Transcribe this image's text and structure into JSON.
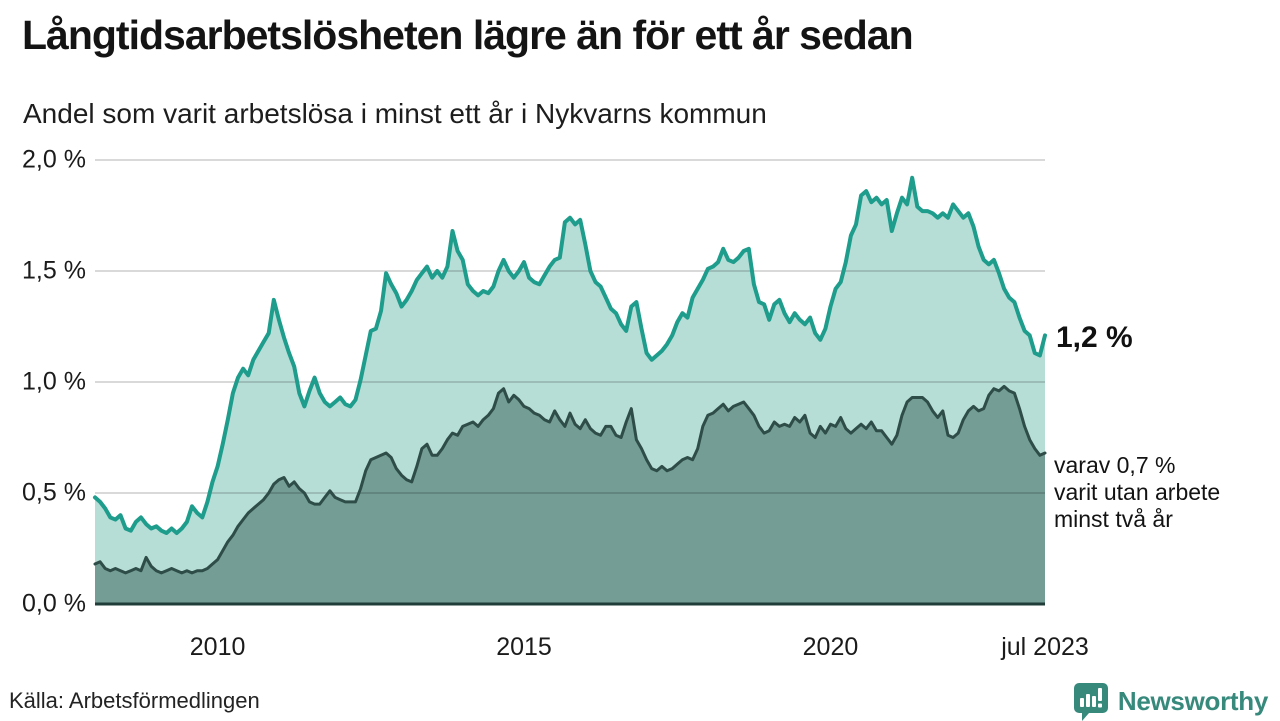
{
  "header": {
    "title": "Långtidsarbetslösheten lägre än för ett år sedan",
    "subtitle": "Andel som varit arbetslösa i minst ett år i Nykvarns kommun"
  },
  "annotations": {
    "latest_total": "1,2 %",
    "latest_sub_line1": "varav 0,7 %",
    "latest_sub_line2": "varit utan arbete",
    "latest_sub_line3": "minst två år"
  },
  "footer": {
    "source": "Källa: Arbetsförmedlingen",
    "brand": "Newsworthy"
  },
  "colors": {
    "line_total": "#1e9c8c",
    "fill_total": "#b7ddd7",
    "line_sub": "#2e4d49",
    "fill_sub": "#749d96",
    "baseline": "#203d39",
    "grid": "rgba(0,0,0,0.15)",
    "brand_teal": "#37897c"
  },
  "chart_data": {
    "type": "area",
    "title": "Långtidsarbetslösheten lägre än för ett år sedan",
    "subtitle": "Andel som varit arbetslösa i minst ett år i Nykvarns kommun",
    "unit": "%",
    "frequency": "monthly",
    "x_start": "2008-01",
    "x_end": "2023-07",
    "ylim": [
      0,
      2.0
    ],
    "grid": true,
    "y_ticks": [
      {
        "value": 2.0,
        "label": "2,0 %"
      },
      {
        "value": 1.5,
        "label": "1,5 %"
      },
      {
        "value": 1.0,
        "label": "1,0 %"
      },
      {
        "value": 0.5,
        "label": "0,5 %"
      },
      {
        "value": 0.0,
        "label": "0,0 %"
      }
    ],
    "x_ticks": [
      {
        "index": 24,
        "label": "2010"
      },
      {
        "index": 84,
        "label": "2015"
      },
      {
        "index": 144,
        "label": "2020"
      },
      {
        "index": 186,
        "label": "jul 2023"
      }
    ],
    "series": [
      {
        "name": "Arbetslösa minst ett år",
        "last_value_label": "1,2 %",
        "values": [
          0.48,
          0.46,
          0.43,
          0.39,
          0.38,
          0.4,
          0.34,
          0.33,
          0.37,
          0.39,
          0.36,
          0.34,
          0.35,
          0.33,
          0.32,
          0.34,
          0.32,
          0.34,
          0.37,
          0.44,
          0.41,
          0.39,
          0.46,
          0.55,
          0.62,
          0.72,
          0.83,
          0.95,
          1.02,
          1.06,
          1.03,
          1.1,
          1.14,
          1.18,
          1.22,
          1.37,
          1.28,
          1.2,
          1.13,
          1.07,
          0.95,
          0.89,
          0.96,
          1.02,
          0.95,
          0.91,
          0.89,
          0.91,
          0.93,
          0.9,
          0.89,
          0.92,
          1.01,
          1.12,
          1.23,
          1.24,
          1.32,
          1.49,
          1.44,
          1.4,
          1.34,
          1.37,
          1.41,
          1.46,
          1.49,
          1.52,
          1.47,
          1.5,
          1.47,
          1.52,
          1.68,
          1.59,
          1.55,
          1.44,
          1.41,
          1.39,
          1.41,
          1.4,
          1.43,
          1.5,
          1.55,
          1.5,
          1.47,
          1.5,
          1.54,
          1.47,
          1.45,
          1.44,
          1.48,
          1.52,
          1.55,
          1.56,
          1.72,
          1.74,
          1.71,
          1.73,
          1.62,
          1.5,
          1.45,
          1.43,
          1.38,
          1.33,
          1.31,
          1.26,
          1.23,
          1.34,
          1.36,
          1.24,
          1.13,
          1.1,
          1.12,
          1.14,
          1.17,
          1.21,
          1.27,
          1.31,
          1.29,
          1.38,
          1.42,
          1.46,
          1.51,
          1.52,
          1.54,
          1.6,
          1.55,
          1.54,
          1.56,
          1.59,
          1.6,
          1.44,
          1.36,
          1.35,
          1.28,
          1.35,
          1.37,
          1.31,
          1.27,
          1.31,
          1.28,
          1.26,
          1.29,
          1.22,
          1.19,
          1.24,
          1.34,
          1.42,
          1.45,
          1.54,
          1.66,
          1.71,
          1.84,
          1.86,
          1.81,
          1.83,
          1.8,
          1.82,
          1.68,
          1.76,
          1.83,
          1.8,
          1.92,
          1.79,
          1.77,
          1.77,
          1.76,
          1.74,
          1.76,
          1.74,
          1.8,
          1.77,
          1.74,
          1.76,
          1.7,
          1.61,
          1.55,
          1.53,
          1.55,
          1.49,
          1.42,
          1.38,
          1.36,
          1.29,
          1.23,
          1.21,
          1.13,
          1.12,
          1.21
        ]
      },
      {
        "name": "varav utan arbete minst två år",
        "last_value_label": "0,7 %",
        "values": [
          0.18,
          0.19,
          0.16,
          0.15,
          0.16,
          0.15,
          0.14,
          0.15,
          0.16,
          0.15,
          0.21,
          0.17,
          0.15,
          0.14,
          0.15,
          0.16,
          0.15,
          0.14,
          0.15,
          0.14,
          0.15,
          0.15,
          0.16,
          0.18,
          0.2,
          0.24,
          0.28,
          0.31,
          0.35,
          0.38,
          0.41,
          0.43,
          0.45,
          0.47,
          0.5,
          0.54,
          0.56,
          0.57,
          0.53,
          0.55,
          0.52,
          0.5,
          0.46,
          0.45,
          0.45,
          0.48,
          0.51,
          0.48,
          0.47,
          0.46,
          0.46,
          0.46,
          0.52,
          0.6,
          0.65,
          0.66,
          0.67,
          0.68,
          0.66,
          0.61,
          0.58,
          0.56,
          0.55,
          0.62,
          0.7,
          0.72,
          0.67,
          0.67,
          0.7,
          0.74,
          0.77,
          0.76,
          0.8,
          0.81,
          0.82,
          0.8,
          0.83,
          0.85,
          0.88,
          0.95,
          0.97,
          0.91,
          0.94,
          0.92,
          0.89,
          0.88,
          0.86,
          0.85,
          0.83,
          0.82,
          0.87,
          0.83,
          0.8,
          0.86,
          0.81,
          0.79,
          0.83,
          0.79,
          0.77,
          0.76,
          0.8,
          0.8,
          0.76,
          0.75,
          0.82,
          0.88,
          0.74,
          0.7,
          0.65,
          0.61,
          0.6,
          0.62,
          0.6,
          0.61,
          0.63,
          0.65,
          0.66,
          0.65,
          0.7,
          0.8,
          0.85,
          0.86,
          0.88,
          0.9,
          0.87,
          0.89,
          0.9,
          0.91,
          0.88,
          0.85,
          0.8,
          0.77,
          0.78,
          0.82,
          0.8,
          0.81,
          0.8,
          0.84,
          0.82,
          0.85,
          0.77,
          0.75,
          0.8,
          0.77,
          0.81,
          0.8,
          0.84,
          0.79,
          0.77,
          0.79,
          0.81,
          0.79,
          0.82,
          0.78,
          0.78,
          0.75,
          0.72,
          0.76,
          0.85,
          0.91,
          0.93,
          0.93,
          0.93,
          0.91,
          0.87,
          0.84,
          0.87,
          0.76,
          0.75,
          0.77,
          0.83,
          0.87,
          0.89,
          0.87,
          0.88,
          0.94,
          0.97,
          0.96,
          0.98,
          0.96,
          0.95,
          0.88,
          0.8,
          0.74,
          0.7,
          0.67,
          0.68
        ]
      }
    ]
  }
}
